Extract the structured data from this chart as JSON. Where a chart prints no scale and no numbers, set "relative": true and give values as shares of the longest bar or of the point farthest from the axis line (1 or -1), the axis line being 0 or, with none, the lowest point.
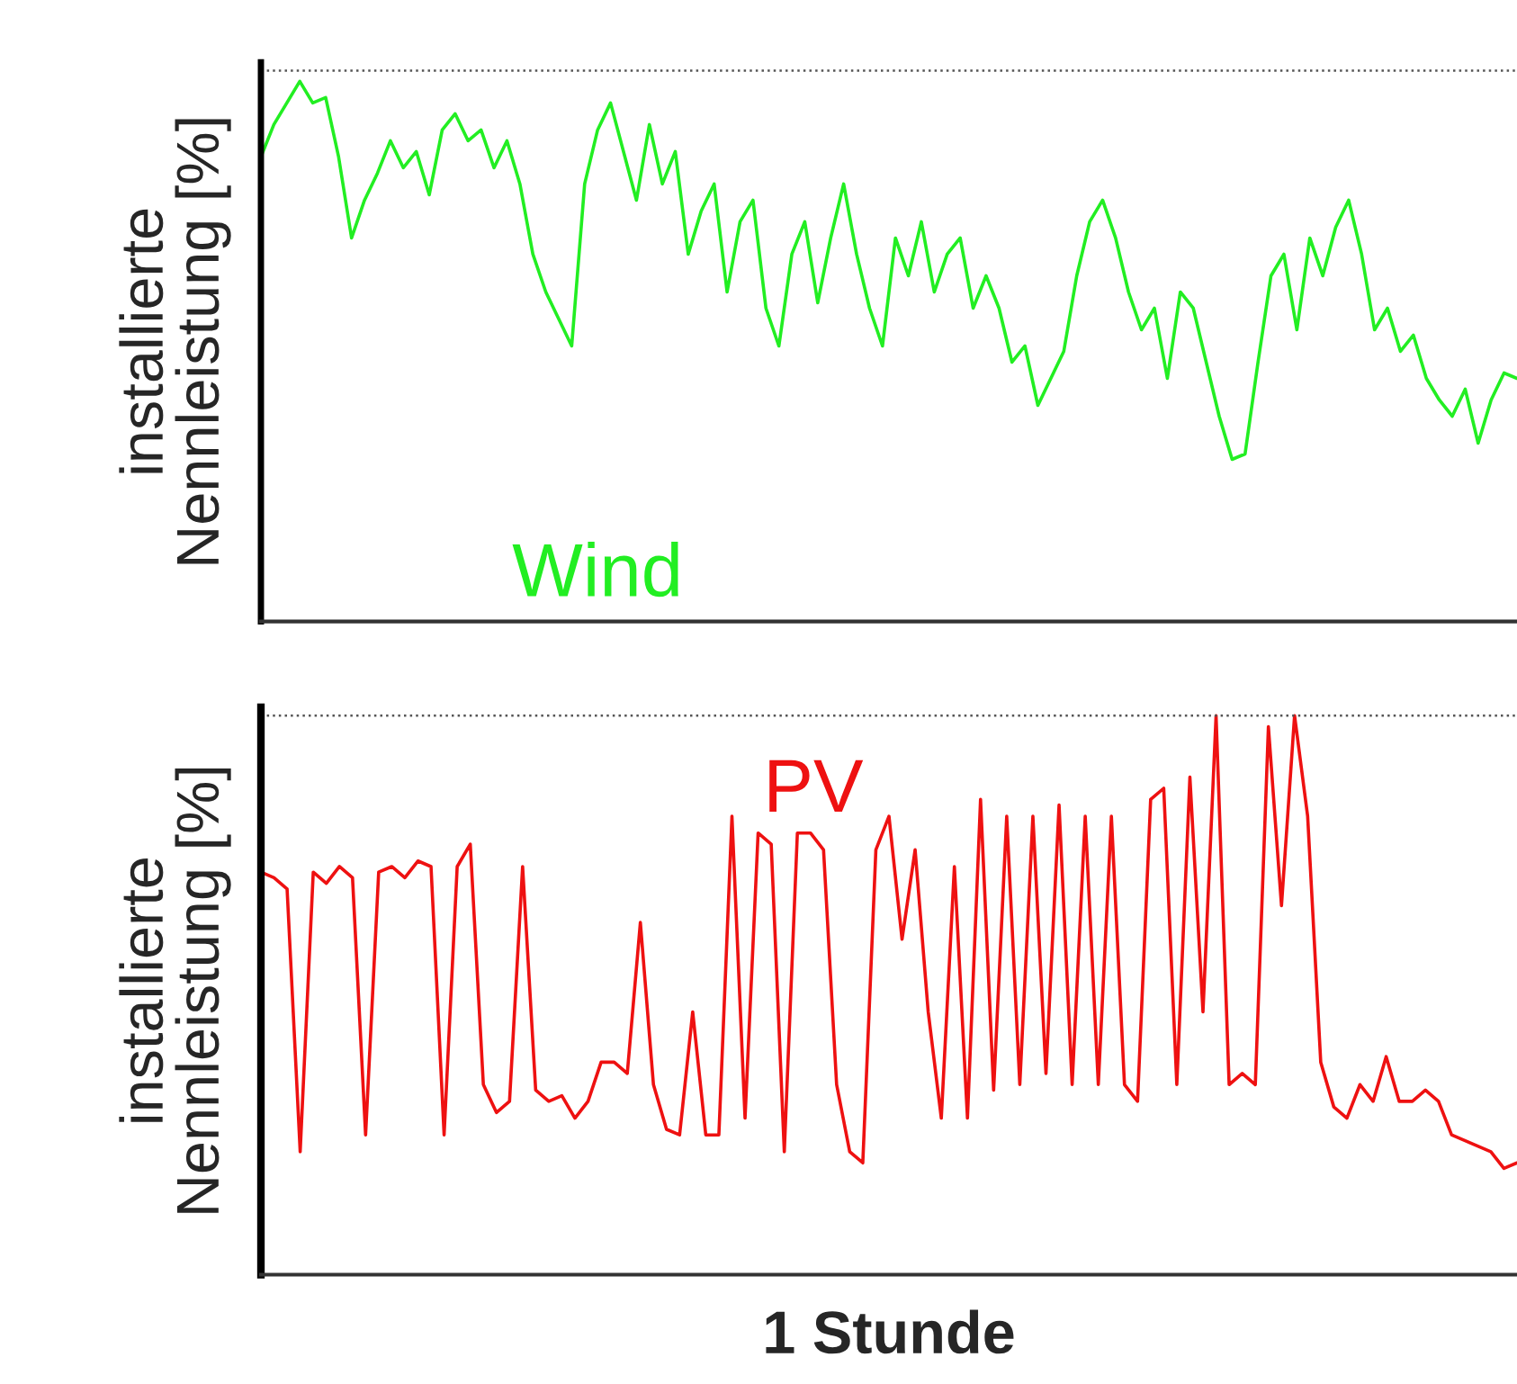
{
  "chart_data": [
    {
      "type": "line",
      "relative": true,
      "ylabel": "installierte\nNennleistung [%]",
      "categories": [
        null,
        null,
        null,
        null,
        null,
        null,
        null,
        null,
        null,
        null,
        null,
        null,
        null,
        null,
        null,
        null,
        null,
        null,
        null,
        null,
        null,
        null,
        null,
        null,
        null,
        null,
        null,
        null,
        null,
        null,
        null,
        null,
        null,
        null,
        null,
        null,
        null,
        null,
        null,
        null,
        null,
        null,
        null,
        null,
        null,
        null,
        null,
        null,
        null,
        null,
        null,
        null,
        null,
        null,
        null,
        null,
        null,
        null,
        null,
        null,
        null,
        null,
        null,
        null,
        null,
        null,
        null,
        null,
        null,
        null,
        null,
        null,
        null,
        null,
        null,
        null,
        null,
        null,
        null,
        null,
        null,
        null,
        null,
        null,
        null,
        null,
        null,
        null,
        null,
        null,
        null,
        null,
        null,
        null,
        null,
        null,
        null,
        null
      ],
      "series": [
        {
          "name": "Wind",
          "color": "#22ee22",
          "values": [
            0.86,
            0.92,
            0.96,
            1.0,
            0.96,
            0.97,
            0.86,
            0.71,
            0.78,
            0.83,
            0.89,
            0.84,
            0.87,
            0.79,
            0.91,
            0.94,
            0.89,
            0.91,
            0.84,
            0.89,
            0.81,
            0.68,
            0.61,
            0.56,
            0.51,
            0.81,
            0.91,
            0.96,
            0.87,
            0.78,
            0.92,
            0.81,
            0.87,
            0.68,
            0.76,
            0.81,
            0.61,
            0.74,
            0.78,
            0.58,
            0.51,
            0.68,
            0.74,
            0.59,
            0.71,
            0.81,
            0.68,
            0.58,
            0.51,
            0.71,
            0.64,
            0.74,
            0.61,
            0.68,
            0.71,
            0.58,
            0.64,
            0.58,
            0.48,
            0.51,
            0.4,
            0.45,
            0.5,
            0.64,
            0.74,
            0.78,
            0.71,
            0.61,
            0.54,
            0.58,
            0.45,
            0.61,
            0.58,
            0.48,
            0.38,
            0.3,
            0.31,
            0.48,
            0.64,
            0.68,
            0.54,
            0.71,
            0.64,
            0.73,
            0.78,
            0.68,
            0.54,
            0.58,
            0.5,
            0.53,
            0.45,
            0.41,
            0.38,
            0.43,
            0.33,
            0.41,
            0.46,
            0.45
          ]
        }
      ],
      "ref_lines": [
        {
          "axis": "y",
          "value": 1.02,
          "color": "#555555",
          "line_style": "dotted"
        }
      ]
    },
    {
      "type": "line",
      "relative": true,
      "ylabel": "installierte\nNennleistung [%]",
      "xlabel": "1 Stunde",
      "categories": [
        null,
        null,
        null,
        null,
        null,
        null,
        null,
        null,
        null,
        null,
        null,
        null,
        null,
        null,
        null,
        null,
        null,
        null,
        null,
        null,
        null,
        null,
        null,
        null,
        null,
        null,
        null,
        null,
        null,
        null,
        null,
        null,
        null,
        null,
        null,
        null,
        null,
        null,
        null,
        null,
        null,
        null,
        null,
        null,
        null,
        null,
        null,
        null,
        null,
        null,
        null,
        null,
        null,
        null,
        null,
        null,
        null,
        null,
        null,
        null,
        null,
        null,
        null,
        null,
        null,
        null,
        null,
        null,
        null,
        null,
        null,
        null,
        null,
        null,
        null,
        null,
        null,
        null,
        null,
        null,
        null,
        null,
        null,
        null,
        null,
        null,
        null,
        null,
        null,
        null,
        null,
        null,
        null,
        null,
        null,
        null,
        null
      ],
      "series": [
        {
          "name": "PV",
          "color": "#ee1111",
          "values": [
            0.72,
            0.71,
            0.69,
            0.22,
            0.72,
            0.7,
            0.73,
            0.71,
            0.25,
            0.72,
            0.73,
            0.71,
            0.74,
            0.73,
            0.25,
            0.73,
            0.77,
            0.34,
            0.29,
            0.31,
            0.73,
            0.33,
            0.31,
            0.32,
            0.28,
            0.31,
            0.38,
            0.38,
            0.36,
            0.63,
            0.34,
            0.26,
            0.25,
            0.47,
            0.25,
            0.25,
            0.82,
            0.28,
            0.79,
            0.77,
            0.22,
            0.79,
            0.79,
            0.76,
            0.34,
            0.22,
            0.2,
            0.76,
            0.82,
            0.6,
            0.76,
            0.47,
            0.28,
            0.73,
            0.28,
            0.85,
            0.33,
            0.82,
            0.34,
            0.82,
            0.36,
            0.84,
            0.34,
            0.82,
            0.34,
            0.82,
            0.34,
            0.31,
            0.85,
            0.87,
            0.34,
            0.89,
            0.47,
            1.0,
            0.34,
            0.36,
            0.34,
            0.98,
            0.66,
            1.0,
            0.82,
            0.38,
            0.3,
            0.28,
            0.34,
            0.31,
            0.39,
            0.31,
            0.31,
            0.33,
            0.31,
            0.25,
            0.24,
            0.23,
            0.22,
            0.19,
            0.2
          ]
        }
      ],
      "ref_lines": [
        {
          "axis": "y",
          "value": 1.0,
          "color": "#555555",
          "line_style": "dotted"
        }
      ]
    }
  ]
}
